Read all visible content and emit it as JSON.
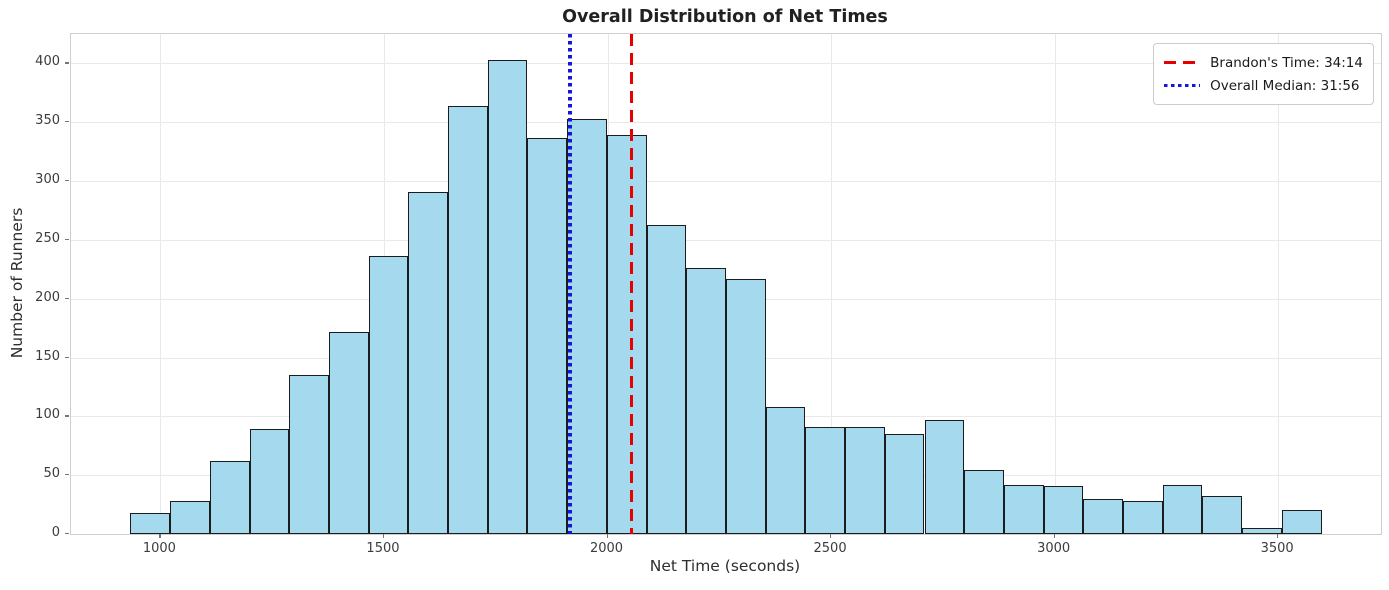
{
  "chart_data": {
    "type": "bar",
    "kind": "histogram",
    "title": "Overall Distribution of Net Times",
    "xlabel": "Net Time (seconds)",
    "ylabel": "Number of Runners",
    "bin_start": 933,
    "bin_width": 88.8,
    "counts": [
      18,
      28,
      62,
      89,
      135,
      172,
      236,
      291,
      364,
      403,
      337,
      353,
      339,
      263,
      226,
      217,
      108,
      91,
      91,
      85,
      97,
      54,
      42,
      41,
      30,
      28,
      42,
      32,
      5,
      20
    ],
    "xlim": [
      800,
      3730
    ],
    "ylim": [
      0,
      425
    ],
    "xticks": [
      1000,
      1500,
      2000,
      2500,
      3000,
      3500
    ],
    "yticks": [
      0,
      50,
      100,
      150,
      200,
      250,
      300,
      350,
      400
    ],
    "grid": true,
    "legend_position": "top-right",
    "bar_color": "#a5daee",
    "bar_edge_color": "#1c1c1c",
    "vlines": [
      {
        "name": "brandons-time-line",
        "x": 2054,
        "color": "#e60000",
        "style": "dashed",
        "label": "Brandon's Time: 34:14"
      },
      {
        "name": "overall-median-line",
        "x": 1916,
        "color": "#1515dd",
        "style": "dotted",
        "label": "Overall Median: 31:56"
      }
    ]
  }
}
